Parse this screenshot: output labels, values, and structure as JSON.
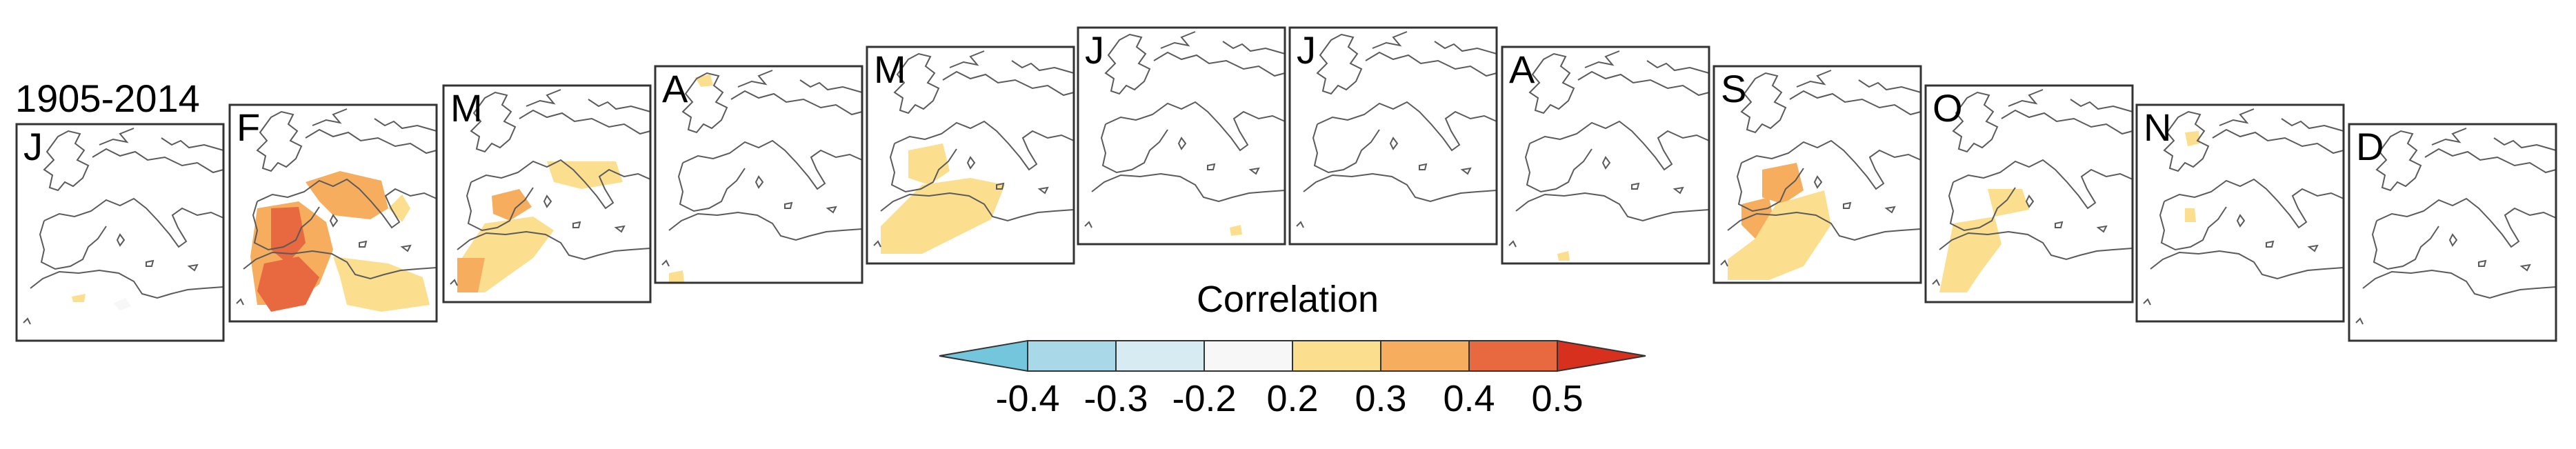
{
  "chart_data": {
    "type": "heatmap",
    "title": "1905-2014",
    "panels": [
      {
        "month": "J"
      },
      {
        "month": "F"
      },
      {
        "month": "M"
      },
      {
        "month": "A"
      },
      {
        "month": "M"
      },
      {
        "month": "J"
      },
      {
        "month": "J"
      },
      {
        "month": "A"
      },
      {
        "month": "S"
      },
      {
        "month": "O"
      },
      {
        "month": "N"
      },
      {
        "month": "D"
      }
    ],
    "colorbar": {
      "label": "Correlation",
      "ticks": [
        "-0.4",
        "-0.3",
        "-0.2",
        "0.2",
        "0.3",
        "0.4",
        "0.5"
      ],
      "colors": [
        "#74c6dc",
        "#a9d8e8",
        "#d6ebf2",
        "#f7f7f7",
        "#fbdf8e",
        "#f6ae5e",
        "#e8683f",
        "#d7301f"
      ],
      "extend": "both"
    }
  }
}
